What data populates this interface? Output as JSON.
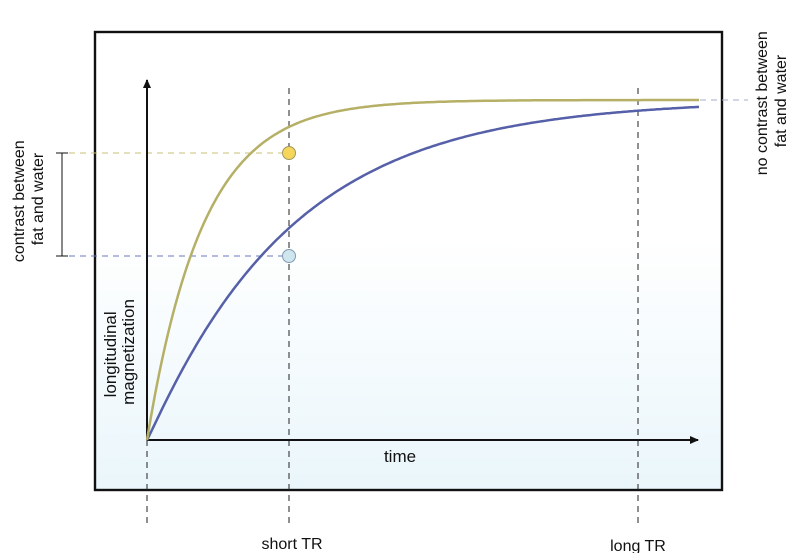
{
  "labels": {
    "y_axis_line1": "longitudinal",
    "y_axis_line2": "magnetization",
    "x_axis": "time",
    "short_tr": "short TR",
    "long_tr": "long TR",
    "contrast_line1": "contrast between",
    "contrast_line2": "fat and water",
    "no_contrast_line1": "no contrast between",
    "no_contrast_line2": "fat and water"
  },
  "colors": {
    "fat_curve": "#b5b066",
    "water_curve": "#5560a8",
    "fat_marker": "#f5d55a",
    "water_marker": "#cfe6ee",
    "fat_guide": "#c8c27a",
    "water_guide": "#6b78c0",
    "frame": "#111111",
    "background_fade": "#eaf6fb"
  },
  "icons": {
    "fat_marker": "circle",
    "water_marker": "circle",
    "axis_arrows": "arrowhead",
    "contrast_bracket": "i-beam"
  },
  "chart_data": {
    "type": "line",
    "curve_family": "T1 recovery (saturation-recovery exponential)",
    "series": [
      {
        "values": "fast recovery (short T1), approaches max",
        "color_key": "fat_curve"
      },
      {
        "values": "slow recovery (long T1), approaches max",
        "color_key": "water_curve"
      }
    ],
    "xlabel": "time",
    "ylabel": "longitudinal magnetization",
    "markers": [
      "short TR",
      "long TR"
    ]
  }
}
